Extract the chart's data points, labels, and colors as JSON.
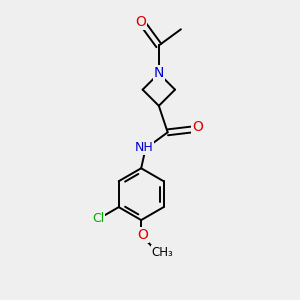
{
  "background_color": "#efefef",
  "atom_colors": {
    "C": "#000000",
    "N": "#0000cc",
    "O": "#dd0000",
    "Cl": "#00aa00",
    "H": "#000000"
  },
  "bond_color": "#000000",
  "bond_width": 1.4,
  "font_size_atoms": 8.5,
  "fig_size": [
    3.0,
    3.0
  ],
  "dpi": 100
}
